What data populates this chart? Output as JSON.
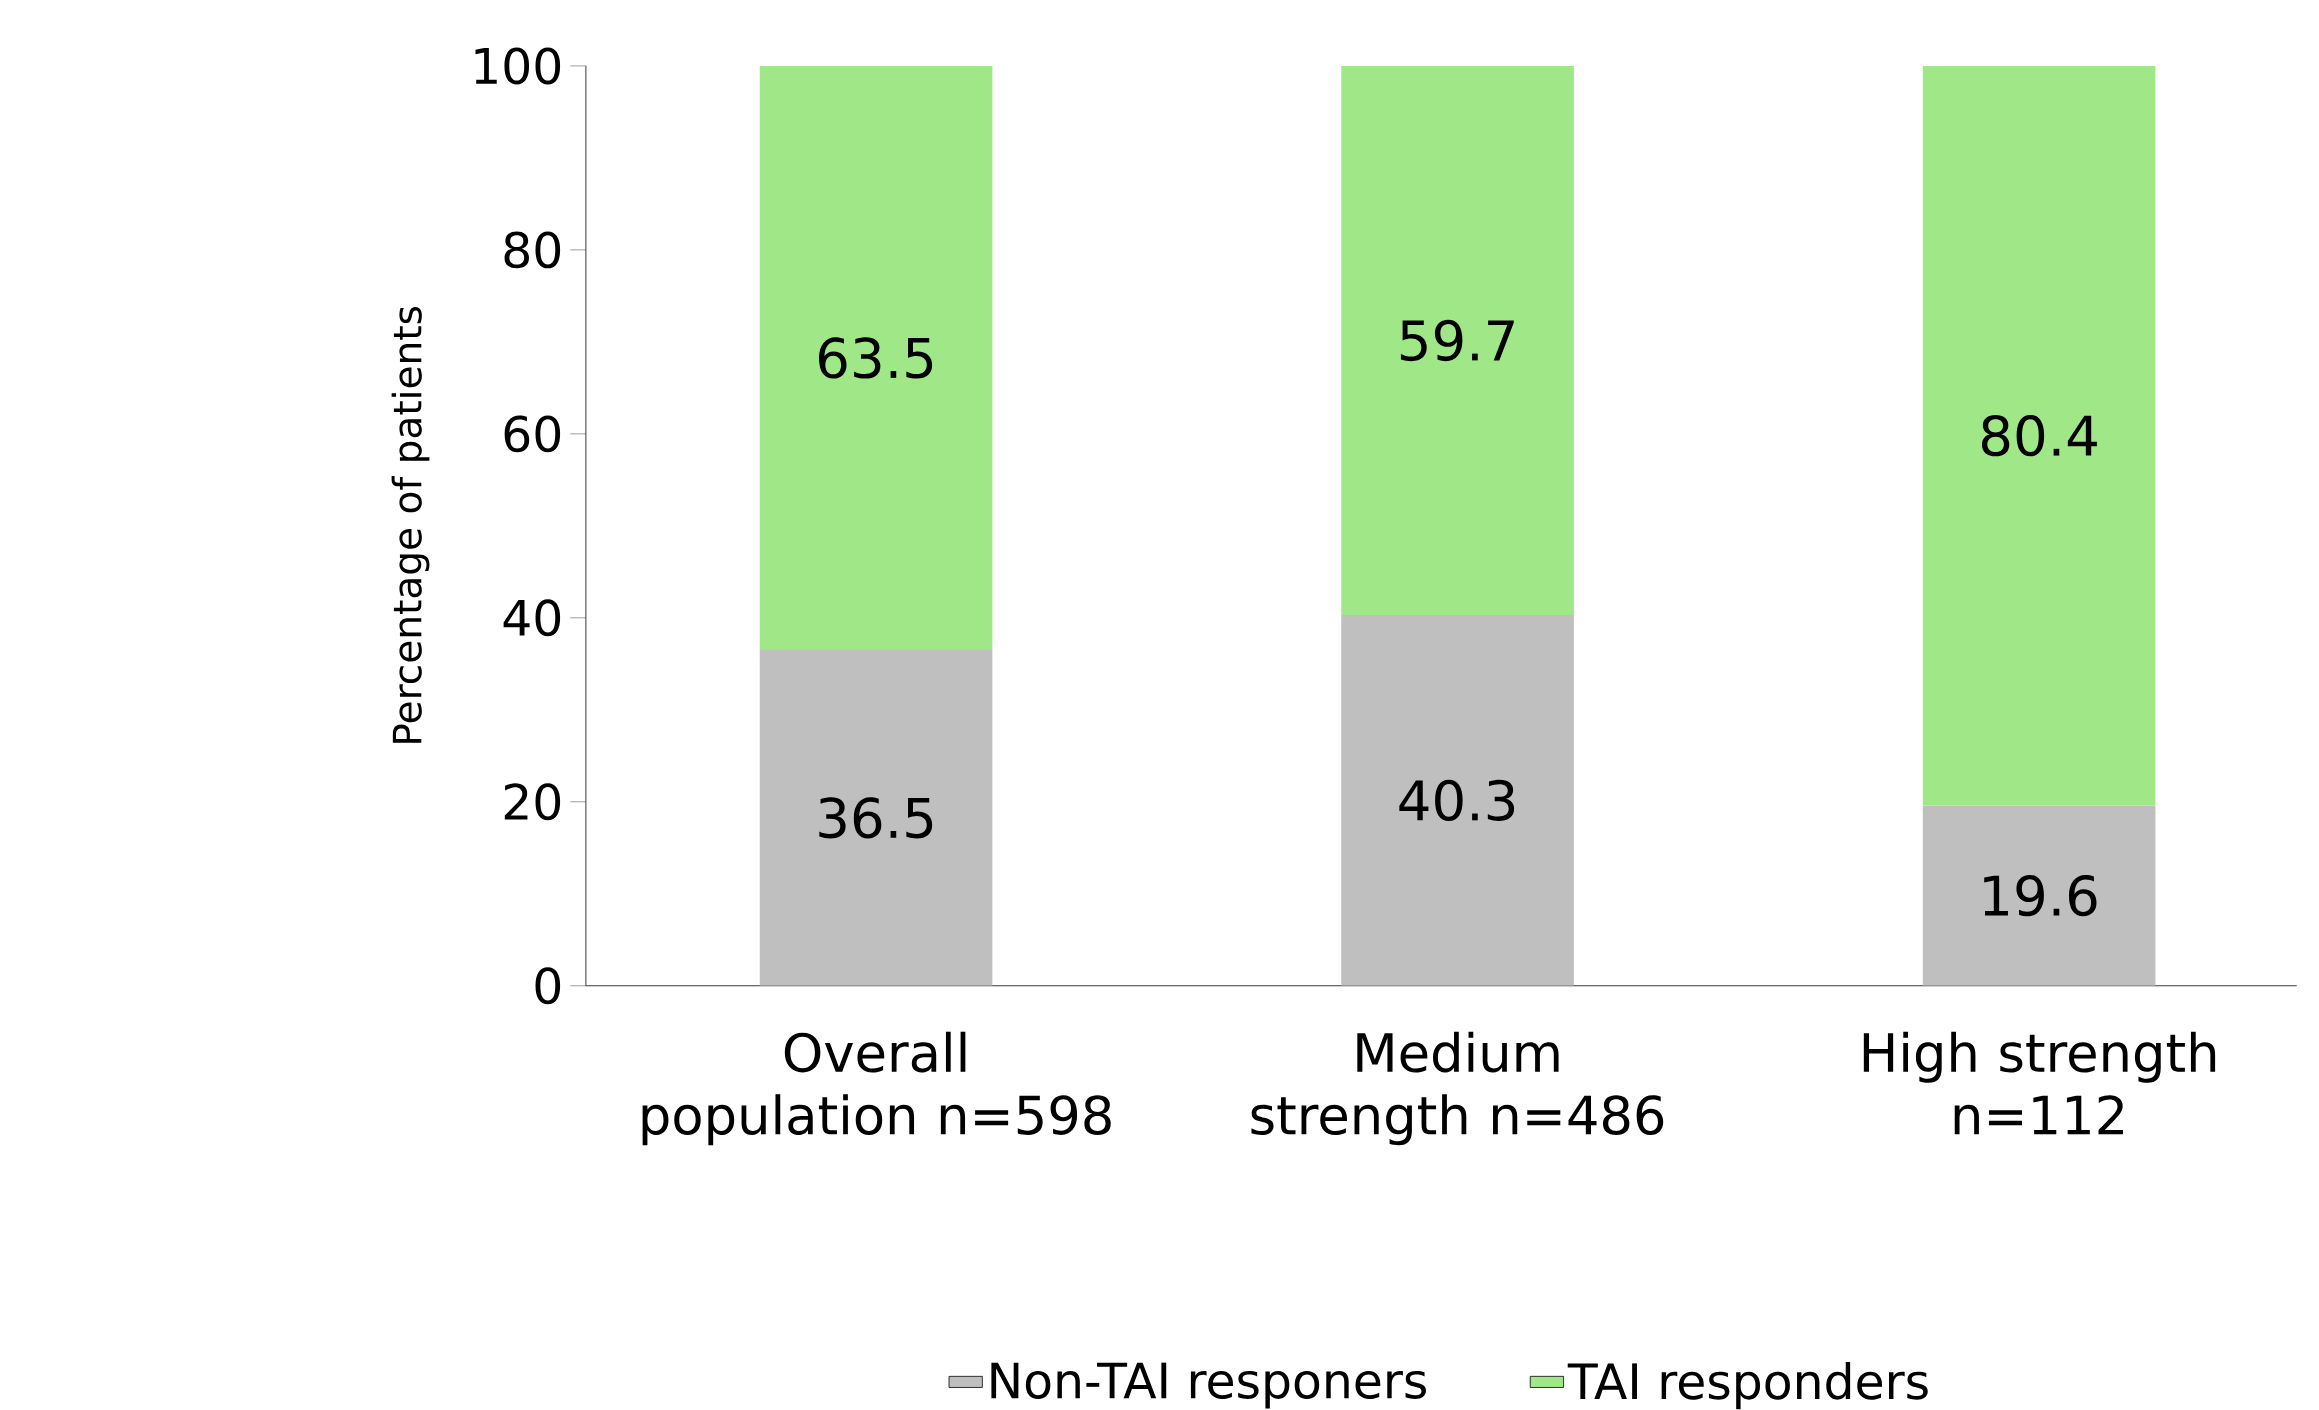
{
  "chart_data": {
    "type": "bar",
    "stacked": true,
    "ylabel": "Percentage of patients",
    "categories": [
      "Overall population n=598",
      "Medium strength n=486",
      "High strength n=112"
    ],
    "series": [
      {
        "name": "Non-TAI responers",
        "color": "#bfbfbf",
        "values": [
          36.5,
          40.3,
          19.6
        ],
        "value_labels": [
          "36.5",
          "40.3",
          "19.6"
        ]
      },
      {
        "name": "TAI responders",
        "color": "#a0e887",
        "values": [
          63.5,
          59.7,
          80.4
        ],
        "value_labels": [
          "63.5",
          "59.7",
          "80.4"
        ]
      }
    ],
    "ylim": [
      0,
      100
    ],
    "yticks": [
      0,
      20,
      40,
      60,
      80,
      100
    ],
    "grid": false,
    "legend": "bottom"
  }
}
